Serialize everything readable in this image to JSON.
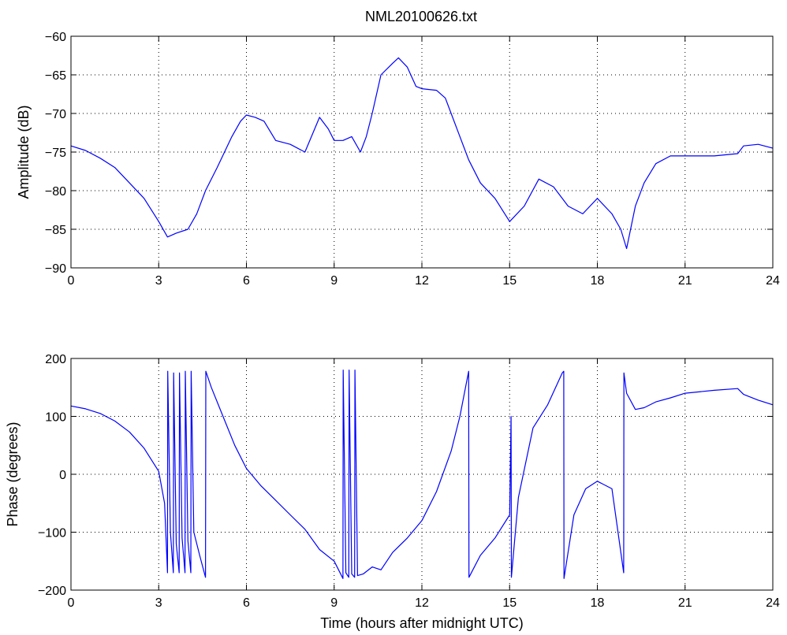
{
  "title": "NML20100626.txt",
  "colors": {
    "trace": "#0000ff",
    "axis": "#000000",
    "grid": "#000000",
    "background": "#ffffff"
  },
  "chart_data": [
    {
      "type": "line",
      "ylabel": "Amplitude (dB)",
      "xlabel": "",
      "xlim": [
        0,
        24
      ],
      "ylim": [
        -90,
        -60
      ],
      "x_ticks": [
        0,
        3,
        6,
        9,
        12,
        15,
        18,
        21,
        24
      ],
      "x_tick_labels": [
        "0",
        "3",
        "6",
        "9",
        "12",
        "15",
        "18",
        "21",
        "24"
      ],
      "y_ticks": [
        -90,
        -85,
        -80,
        -75,
        -70,
        -65,
        -60
      ],
      "y_tick_labels": [
        "−90",
        "−85",
        "−80",
        "−75",
        "−70",
        "−65",
        "−60"
      ],
      "grid": true,
      "series": [
        {
          "color": "#0000ff",
          "x": [
            0,
            0.5,
            1,
            1.5,
            2,
            2.5,
            3,
            3.3,
            3.6,
            4,
            4.3,
            4.6,
            5,
            5.5,
            5.8,
            6,
            6.3,
            6.6,
            7,
            7.5,
            8,
            8.5,
            8.8,
            9,
            9.3,
            9.6,
            9.9,
            10.1,
            10.3,
            10.6,
            11,
            11.2,
            11.5,
            11.8,
            12,
            12.5,
            12.8,
            13,
            13.3,
            13.5,
            13.6,
            14,
            14.5,
            15,
            15.5,
            16,
            16.5,
            17,
            17.5,
            18,
            18.5,
            18.8,
            19,
            19.3,
            19.6,
            20,
            20.5,
            21,
            22,
            22.8,
            23,
            23.5,
            24
          ],
          "y": [
            -74.2,
            -74.8,
            -75.8,
            -77,
            -79,
            -81,
            -84,
            -86,
            -85.5,
            -85,
            -83,
            -80,
            -77,
            -73,
            -71,
            -70.2,
            -70.5,
            -71,
            -73.5,
            -74,
            -75,
            -70.5,
            -72,
            -73.5,
            -73.5,
            -73,
            -75,
            -73,
            -70,
            -65,
            -63.5,
            -62.8,
            -64,
            -66.5,
            -66.8,
            -67,
            -68,
            -70,
            -73,
            -75,
            -76,
            -79,
            -81,
            -84,
            -82,
            -78.5,
            -79.5,
            -82,
            -83,
            -81,
            -83,
            -85,
            -87.5,
            -82,
            -79,
            -76.5,
            -75.5,
            -75.5,
            -75.5,
            -75.2,
            -74.2,
            -74,
            -74.5
          ]
        }
      ]
    },
    {
      "type": "line",
      "ylabel": "Phase (degrees)",
      "xlabel": "Time (hours after midnight UTC)",
      "xlim": [
        0,
        24
      ],
      "ylim": [
        -200,
        200
      ],
      "x_ticks": [
        0,
        3,
        6,
        9,
        12,
        15,
        18,
        21,
        24
      ],
      "x_tick_labels": [
        "0",
        "3",
        "6",
        "9",
        "12",
        "15",
        "18",
        "21",
        "24"
      ],
      "y_ticks": [
        -200,
        -100,
        0,
        100,
        200
      ],
      "y_tick_labels": [
        "−200",
        "−100",
        "0",
        "100",
        "200"
      ],
      "grid": true,
      "series": [
        {
          "color": "#0000ff",
          "x": [
            0,
            0.5,
            1,
            1.5,
            2,
            2.5,
            3,
            3.2,
            3.3,
            3.31,
            3.4,
            3.5,
            3.51,
            3.6,
            3.7,
            3.71,
            3.8,
            3.9,
            3.91,
            4.0,
            4.1,
            4.11,
            4.2,
            4.4,
            4.6,
            4.61,
            4.8,
            5.2,
            5.6,
            6,
            6.5,
            7,
            7.5,
            8,
            8.5,
            9,
            9.3,
            9.31,
            9.4,
            9.5,
            9.51,
            9.6,
            9.7,
            9.71,
            9.8,
            10,
            10.3,
            10.6,
            11,
            11.5,
            12,
            12.5,
            13,
            13.3,
            13.6,
            13.61,
            14,
            14.5,
            15,
            15.05,
            15.06,
            15.3,
            15.8,
            16.3,
            16.8,
            16.85,
            16.86,
            17.2,
            17.6,
            18,
            18.5,
            18.9,
            18.91,
            19,
            19.3,
            19.6,
            20,
            20.5,
            21,
            22,
            22.8,
            23,
            23.5,
            24
          ],
          "y": [
            118,
            113,
            105,
            92,
            73,
            45,
            5,
            -50,
            -170,
            178,
            -100,
            -170,
            175,
            -120,
            -170,
            175,
            -110,
            -170,
            178,
            -115,
            -170,
            178,
            -100,
            -140,
            -178,
            178,
            150,
            100,
            50,
            10,
            -20,
            -45,
            -70,
            -95,
            -130,
            -150,
            -180,
            180,
            -170,
            -178,
            180,
            -172,
            -178,
            180,
            -175,
            -172,
            -160,
            -165,
            -135,
            -110,
            -80,
            -30,
            40,
            100,
            178,
            -178,
            -140,
            -110,
            -70,
            100,
            -178,
            -40,
            80,
            120,
            175,
            178,
            -180,
            -70,
            -25,
            -12,
            -25,
            -170,
            175,
            140,
            112,
            115,
            125,
            132,
            140,
            145,
            148,
            138,
            128,
            120
          ]
        }
      ]
    }
  ]
}
